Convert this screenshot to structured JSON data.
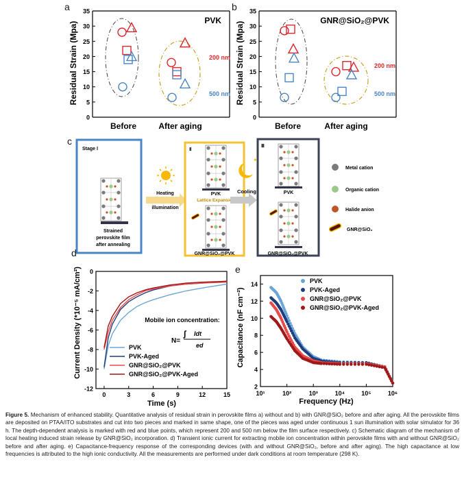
{
  "colors": {
    "red": "#e0262a",
    "blue": "#4a86c6",
    "gold": "#c9a227",
    "dark": "#333333",
    "pvk": "#6aa5d9",
    "pvk_aged": "#1f3d7a",
    "gnr": "#e84a4a",
    "gnr_aged": "#a01818"
  },
  "panels": {
    "a": "a",
    "b": "b",
    "c": "c",
    "d": "d",
    "e": "e"
  },
  "panel_a": {
    "title": "PVK",
    "ylabel": "Residual Strain (Mpa)",
    "categories": [
      "Before",
      "After aging"
    ],
    "legend_200": "200 nm",
    "legend_500": "500 nm",
    "yticks": [
      "0",
      "5",
      "10",
      "15",
      "20",
      "25",
      "30",
      "35"
    ]
  },
  "panel_b": {
    "title": "GNR@SiO₂@PVK",
    "ylabel": "Residual Strain (Mpa)",
    "categories": [
      "Before",
      "After aging"
    ],
    "legend_200": "200 nm",
    "legend_500": "500 nm",
    "yticks": [
      "0",
      "5",
      "10",
      "15",
      "20",
      "25",
      "30",
      "35"
    ]
  },
  "panel_c": {
    "stage1": "Stage Ⅰ",
    "stage2": "Ⅱ",
    "stage3": "Ⅲ",
    "film_caption_1": "Strained",
    "film_caption_2": "perovskite film",
    "film_caption_3": "after annealing",
    "heating_1": "Heating",
    "heating_2": "or",
    "heating_3": "illumination",
    "pvk_label": "PVK",
    "expansion": "Lattice Expansion",
    "gnr_label": "GNR@SiO₂@PVK",
    "cooling": "Cooling",
    "pvk_label_3": "PVK",
    "gnr_label_3": "GNR@SiO₂@PVK",
    "legend": [
      "Metal cation",
      "Organic cation",
      "Halide anion",
      "GNR@SiO₂"
    ]
  },
  "panel_d": {
    "ylabel": "Current Density (*10⁻⁵ mA/cm²)",
    "xlabel": "Time (s)",
    "annotation": "Mobile ion concentration:",
    "formula_n": "N=",
    "formula_num": "Idt",
    "formula_den": "ed",
    "legend": [
      "PVK",
      "PVK-Aged",
      "GNR@SiO₂@PVK",
      "GNR@SiO₂@PVK-Aged"
    ],
    "xticks": [
      "0",
      "3",
      "6",
      "9",
      "12",
      "15"
    ],
    "yticks": [
      "0",
      "-2",
      "-4",
      "-6",
      "-8",
      "-10",
      "-12"
    ]
  },
  "panel_e": {
    "ylabel": "Capacitance (nF cm⁻²)",
    "xlabel": "Frequency (Hz)",
    "legend": [
      "PVK",
      "PVK-Aged",
      "GNR@SiO₂@PVK",
      "GNR@SiO₂@PVK-Aged"
    ],
    "xticks": [
      "10¹",
      "10²",
      "10³",
      "10⁴",
      "10⁵",
      "10⁶"
    ],
    "yticks": [
      "2",
      "4",
      "6",
      "8",
      "10",
      "12",
      "14"
    ]
  },
  "chart_data": [
    {
      "type": "scatter",
      "title": "PVK",
      "ylabel": "Residual Strain (Mpa)",
      "ylim": [
        0,
        35
      ],
      "categories": [
        "Before",
        "After aging"
      ],
      "series": [
        {
          "name": "200 nm",
          "marker_shapes": [
            "circle",
            "triangle",
            "square"
          ],
          "before": [
            28,
            29.5,
            22
          ],
          "after": [
            18,
            24.5,
            15
          ]
        },
        {
          "name": "500 nm",
          "marker_shapes": [
            "circle",
            "triangle",
            "square"
          ],
          "before": [
            10,
            20,
            19
          ],
          "after": [
            6.5,
            11,
            14
          ]
        }
      ]
    },
    {
      "type": "scatter",
      "title": "GNR@SiO₂@PVK",
      "ylabel": "Residual Strain (Mpa)",
      "ylim": [
        0,
        35
      ],
      "categories": [
        "Before",
        "After aging"
      ],
      "series": [
        {
          "name": "200 nm",
          "marker_shapes": [
            "circle",
            "square",
            "triangle"
          ],
          "before": [
            28.5,
            29,
            22.5
          ],
          "after": [
            15,
            17,
            16.5
          ]
        },
        {
          "name": "500 nm",
          "marker_shapes": [
            "circle",
            "square",
            "triangle"
          ],
          "before": [
            6.5,
            13,
            19.5
          ],
          "after": [
            6.5,
            8.5,
            14
          ]
        }
      ]
    },
    {
      "type": "line",
      "xlabel": "Time (s)",
      "ylabel": "Current Density (*10⁻⁵ mA/cm²)",
      "xlim": [
        -1,
        15
      ],
      "ylim": [
        -12,
        0
      ],
      "x": [
        0,
        0.5,
        1,
        2,
        3,
        4,
        5,
        6,
        8,
        10,
        12,
        15
      ],
      "series": [
        {
          "name": "PVK",
          "values": [
            -10.0,
            -7.6,
            -6.4,
            -5.0,
            -4.2,
            -3.6,
            -3.2,
            -2.9,
            -2.4,
            -2.0,
            -1.7,
            -1.3
          ]
        },
        {
          "name": "PVK-Aged",
          "values": [
            -9.8,
            -6.8,
            -5.4,
            -3.9,
            -3.1,
            -2.6,
            -2.2,
            -1.9,
            -1.5,
            -1.3,
            -1.2,
            -1.0
          ]
        },
        {
          "name": "GNR@SiO₂@PVK",
          "values": [
            -8.0,
            -6.2,
            -5.0,
            -3.7,
            -2.9,
            -2.4,
            -2.0,
            -1.8,
            -1.5,
            -1.3,
            -1.2,
            -1.1
          ]
        },
        {
          "name": "GNR@SiO₂@PVK-Aged",
          "values": [
            -7.8,
            -5.6,
            -4.6,
            -3.3,
            -2.6,
            -2.2,
            -1.9,
            -1.7,
            -1.4,
            -1.2,
            -1.1,
            -1.0
          ]
        }
      ]
    },
    {
      "type": "scatter",
      "xlabel": "Frequency (Hz)",
      "ylabel": "Capacitance (nF cm⁻²)",
      "xscale": "log",
      "xlim": [
        10,
        1000000
      ],
      "ylim": [
        2,
        15
      ],
      "x": [
        25,
        40,
        60,
        100,
        200,
        400,
        1000,
        2000,
        10000,
        100000,
        500000,
        1000000
      ],
      "series": [
        {
          "name": "PVK",
          "values": [
            13.6,
            13.0,
            12.0,
            10.3,
            8.2,
            6.6,
            5.5,
            5.1,
            4.9,
            4.8,
            4.3,
            2.4
          ]
        },
        {
          "name": "PVK-Aged",
          "values": [
            12.4,
            11.8,
            11.0,
            9.6,
            7.7,
            6.4,
            5.3,
            5.0,
            4.8,
            4.8,
            4.3,
            2.4
          ]
        },
        {
          "name": "GNR@SiO₂@PVK",
          "values": [
            11.8,
            11.0,
            10.0,
            8.4,
            6.6,
            5.6,
            5.0,
            4.8,
            4.7,
            4.7,
            4.3,
            2.4
          ]
        },
        {
          "name": "GNR@SiO₂@PVK-Aged",
          "values": [
            10.2,
            9.6,
            8.8,
            7.6,
            6.2,
            5.3,
            4.8,
            4.7,
            4.6,
            4.6,
            4.2,
            2.4
          ]
        }
      ]
    }
  ],
  "caption": {
    "label": "Figure 5.",
    "text": "Mechanism of enhanced stability. Quantitative analysis of residual strain in perovskite films a) without and b) with GNR@SiO₂ before and after aging. All the perovskite films are deposited on PTAA/ITO substrates and cut into two pieces and marked in same shape, one of the pieces was aged under continuous 1 sun illumination with solar simulator for 36 h. The depth-dependent analysis is marked with red and blue points, which represent 200 and 500 nm below the film surface respectively. c) Schematic diagram of the mechanism of local heating induced strain release by GNR@SiO₂ incorporation. d) Transient ionic current for extracting mobile ion concentration within perovskite films with and without GNR@SiO₂ before and after aging. e) Capacitance-frequency response of the corresponding devices (with and without GNR@SiO₂, before and after aging). The high capacitance at low frequencies is attributed to the high ionic conductivity. All the measurements are performed under dark conditions at room temperature (298 K)."
  }
}
